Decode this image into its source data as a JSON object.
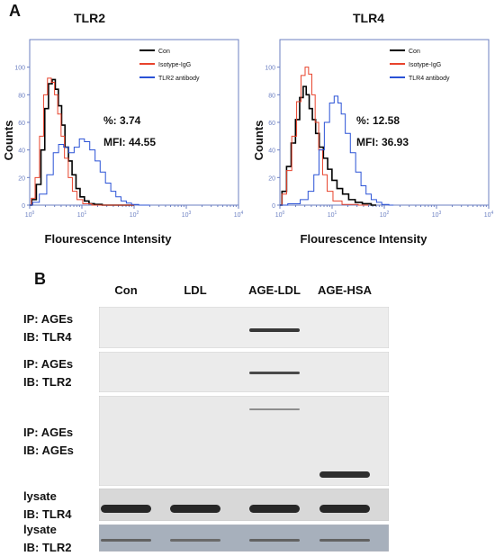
{
  "panel_a": {
    "letter": "A",
    "xlabel": "Flourescence Intensity",
    "ylabel": "Counts",
    "ytick_labels": [
      "0",
      "20",
      "40",
      "60",
      "80",
      "100"
    ],
    "xtick_labels": [
      {
        "base": "10",
        "exp": "0"
      },
      {
        "base": "10",
        "exp": "1"
      },
      {
        "base": "10",
        "exp": "2"
      },
      {
        "base": "10",
        "exp": "3"
      },
      {
        "base": "10",
        "exp": "4"
      }
    ]
  },
  "chart_data": [
    {
      "type": "line",
      "title": "TLR2",
      "xlabel": "Flourescence Intensity",
      "ylabel": "Counts",
      "xscale": "log",
      "xlim": [
        1,
        10000
      ],
      "ylim": [
        0,
        120
      ],
      "legend": {
        "placement": "top-right"
      },
      "annotations": {
        "percent": "%: 3.74",
        "mfi": "MFI: 44.55"
      },
      "series": [
        {
          "name": "Con",
          "color": "#000000",
          "x": [
            1,
            1.2,
            1.5,
            1.8,
            2.1,
            2.5,
            2.9,
            3.3,
            3.8,
            4.4,
            5.1,
            6,
            7,
            8.5,
            10,
            12.5,
            15,
            20,
            30,
            50,
            100
          ],
          "y": [
            0,
            4,
            15,
            40,
            70,
            88,
            91,
            84,
            72,
            58,
            42,
            32,
            22,
            12,
            6,
            3,
            1,
            0.5,
            0,
            0,
            0
          ]
        },
        {
          "name": "Isotype-IgG",
          "color": "#e8432c",
          "x": [
            1,
            1.15,
            1.4,
            1.7,
            2.0,
            2.4,
            2.8,
            3.2,
            3.7,
            4.3,
            5.0,
            6,
            7.2,
            9,
            12,
            20,
            100
          ],
          "y": [
            0,
            5,
            20,
            50,
            80,
            92,
            89,
            80,
            66,
            50,
            34,
            20,
            10,
            4,
            1,
            0,
            0
          ]
        },
        {
          "name": "TLR2 antibody",
          "color": "#2a52d6",
          "x": [
            1,
            1.3,
            1.8,
            2.5,
            3.2,
            4,
            5,
            6.3,
            8,
            10,
            12.5,
            16,
            20,
            25,
            32,
            40,
            50,
            63,
            80,
            100,
            150,
            200
          ],
          "y": [
            0,
            2,
            8,
            22,
            38,
            44,
            42,
            38,
            42,
            48,
            46,
            40,
            32,
            24,
            16,
            10,
            6,
            3,
            1.5,
            0.5,
            0,
            0
          ]
        }
      ]
    },
    {
      "type": "line",
      "title": "TLR4",
      "xlabel": "Flourescence Intensity",
      "ylabel": "Counts",
      "xscale": "log",
      "xlim": [
        1,
        10000
      ],
      "ylim": [
        0,
        120
      ],
      "legend": {
        "placement": "top-right"
      },
      "annotations": {
        "percent": "%: 12.58",
        "mfi": "MFI: 36.93"
      },
      "series": [
        {
          "name": "Con",
          "color": "#000000",
          "x": [
            1,
            1.2,
            1.5,
            1.8,
            2.2,
            2.6,
            3.0,
            3.4,
            3.9,
            4.5,
            5.2,
            6.2,
            7.5,
            9,
            11,
            14,
            18,
            24,
            32,
            45,
            70
          ],
          "y": [
            0,
            10,
            28,
            45,
            62,
            78,
            86,
            80,
            70,
            62,
            52,
            42,
            34,
            26,
            18,
            12,
            8,
            4,
            2,
            1,
            0
          ]
        },
        {
          "name": "Isotype-IgG",
          "color": "#e8432c",
          "x": [
            1,
            1.2,
            1.5,
            1.9,
            2.3,
            2.8,
            3.3,
            3.8,
            4.4,
            5.1,
            6,
            7.2,
            9,
            12,
            20,
            50
          ],
          "y": [
            0,
            8,
            25,
            50,
            75,
            94,
            100,
            95,
            80,
            60,
            40,
            22,
            10,
            3,
            0.5,
            0
          ]
        },
        {
          "name": "TLR4 antibody",
          "color": "#2a52d6",
          "x": [
            1,
            2,
            3,
            4,
            5,
            6.3,
            8,
            10,
            12,
            14,
            16,
            20,
            25,
            32,
            40,
            50,
            63,
            80,
            100,
            150
          ],
          "y": [
            0,
            1,
            4,
            10,
            22,
            40,
            60,
            74,
            79,
            74,
            66,
            52,
            38,
            24,
            14,
            8,
            4,
            2,
            0.5,
            0
          ]
        }
      ]
    }
  ],
  "panel_b": {
    "letter": "B",
    "lanes": [
      "Con",
      "LDL",
      "AGE-LDL",
      "AGE-HSA"
    ],
    "blots": [
      {
        "ip": "IP: AGEs",
        "ib": "IB: TLR4",
        "bg": "#ededed",
        "bands": [
          0,
          0,
          0.85,
          0
        ]
      },
      {
        "ip": "IP: AGEs",
        "ib": "IB: TLR2",
        "bg": "#ebebeb",
        "bands": [
          0,
          0,
          0.75,
          0
        ]
      },
      {
        "ip": "IP: AGEs",
        "ib": "IB: AGEs",
        "bg": "#e9e9e9",
        "bands": [
          0,
          0,
          0.35,
          0.9
        ]
      },
      {
        "ip": "lysate",
        "ib": "IB: TLR4",
        "bg": "#d8d8d8",
        "bands": [
          0.95,
          0.95,
          0.95,
          0.95
        ]
      },
      {
        "ip": "lysate",
        "ib": "IB: TLR2",
        "bg": "#a7b0bc",
        "bands": [
          0.6,
          0.55,
          0.6,
          0.6
        ]
      }
    ]
  }
}
